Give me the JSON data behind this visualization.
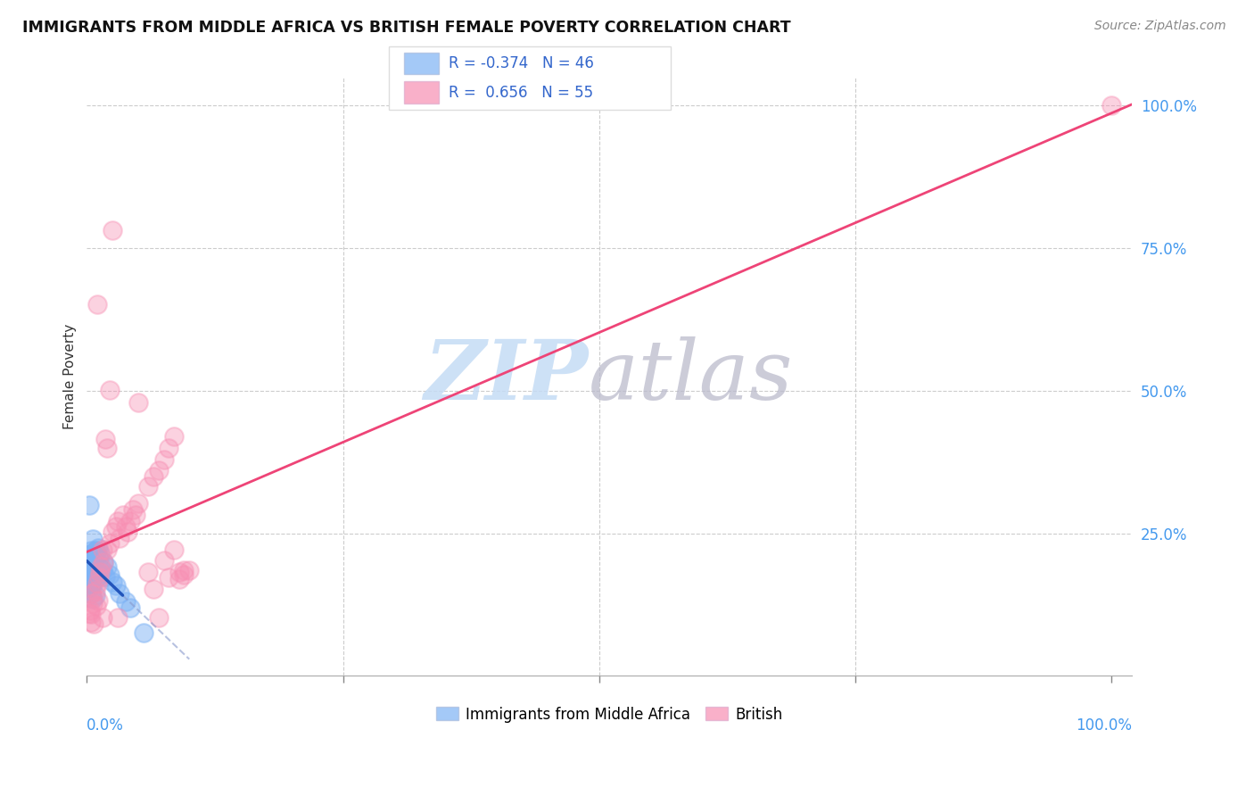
{
  "title": "IMMIGRANTS FROM MIDDLE AFRICA VS BRITISH FEMALE POVERTY CORRELATION CHART",
  "source": "Source: ZipAtlas.com",
  "ylabel": "Female Poverty",
  "blue_color": "#7EB3F5",
  "pink_color": "#F78FB3",
  "blue_line_color": "#2255BB",
  "pink_line_color": "#EE4477",
  "blue_R": -0.374,
  "pink_R": 0.656,
  "blue_N": 46,
  "pink_N": 55,
  "blue_points": [
    [
      0.003,
      0.195
    ],
    [
      0.005,
      0.205
    ],
    [
      0.007,
      0.2
    ],
    [
      0.008,
      0.21
    ],
    [
      0.002,
      0.185
    ],
    [
      0.003,
      0.175
    ],
    [
      0.004,
      0.17
    ],
    [
      0.005,
      0.165
    ],
    [
      0.006,
      0.16
    ],
    [
      0.004,
      0.22
    ],
    [
      0.002,
      0.19
    ],
    [
      0.001,
      0.2
    ],
    [
      0.003,
      0.165
    ],
    [
      0.004,
      0.18
    ],
    [
      0.006,
      0.215
    ],
    [
      0.007,
      0.185
    ],
    [
      0.009,
      0.18
    ],
    [
      0.01,
      0.175
    ],
    [
      0.001,
      0.195
    ],
    [
      0.002,
      0.168
    ],
    [
      0.012,
      0.205
    ],
    [
      0.011,
      0.225
    ],
    [
      0.008,
      0.22
    ],
    [
      0.006,
      0.24
    ],
    [
      0.015,
      0.185
    ],
    [
      0.018,
      0.175
    ],
    [
      0.003,
      0.155
    ],
    [
      0.004,
      0.145
    ],
    [
      0.006,
      0.135
    ],
    [
      0.005,
      0.162
    ],
    [
      0.009,
      0.22
    ],
    [
      0.013,
      0.215
    ],
    [
      0.016,
      0.2
    ],
    [
      0.02,
      0.192
    ],
    [
      0.022,
      0.178
    ],
    [
      0.025,
      0.165
    ],
    [
      0.028,
      0.158
    ],
    [
      0.002,
      0.3
    ],
    [
      0.032,
      0.145
    ],
    [
      0.038,
      0.13
    ],
    [
      0.001,
      0.212
    ],
    [
      0.003,
      0.192
    ],
    [
      0.005,
      0.182
    ],
    [
      0.008,
      0.142
    ],
    [
      0.042,
      0.12
    ],
    [
      0.055,
      0.075
    ]
  ],
  "pink_points": [
    [
      0.003,
      0.115
    ],
    [
      0.004,
      0.095
    ],
    [
      0.005,
      0.145
    ],
    [
      0.004,
      0.108
    ],
    [
      0.006,
      0.128
    ],
    [
      0.007,
      0.092
    ],
    [
      0.008,
      0.15
    ],
    [
      0.002,
      0.11
    ],
    [
      0.01,
      0.162
    ],
    [
      0.009,
      0.122
    ],
    [
      0.012,
      0.172
    ],
    [
      0.011,
      0.132
    ],
    [
      0.015,
      0.222
    ],
    [
      0.013,
      0.182
    ],
    [
      0.016,
      0.2
    ],
    [
      0.014,
      0.192
    ],
    [
      0.018,
      0.415
    ],
    [
      0.02,
      0.222
    ],
    [
      0.02,
      0.4
    ],
    [
      0.022,
      0.232
    ],
    [
      0.025,
      0.252
    ],
    [
      0.025,
      0.782
    ],
    [
      0.028,
      0.262
    ],
    [
      0.03,
      0.272
    ],
    [
      0.032,
      0.242
    ],
    [
      0.035,
      0.282
    ],
    [
      0.038,
      0.262
    ],
    [
      0.04,
      0.252
    ],
    [
      0.042,
      0.272
    ],
    [
      0.045,
      0.292
    ],
    [
      0.048,
      0.282
    ],
    [
      0.05,
      0.302
    ],
    [
      0.015,
      0.102
    ],
    [
      0.03,
      0.102
    ],
    [
      0.022,
      0.502
    ],
    [
      0.01,
      0.652
    ],
    [
      0.06,
      0.182
    ],
    [
      0.065,
      0.152
    ],
    [
      0.07,
      0.102
    ],
    [
      0.075,
      0.202
    ],
    [
      0.08,
      0.172
    ],
    [
      0.085,
      0.222
    ],
    [
      0.09,
      0.182
    ],
    [
      0.095,
      0.178
    ],
    [
      0.06,
      0.332
    ],
    [
      0.065,
      0.35
    ],
    [
      0.07,
      0.36
    ],
    [
      0.075,
      0.38
    ],
    [
      0.08,
      0.4
    ],
    [
      0.085,
      0.42
    ],
    [
      0.09,
      0.17
    ],
    [
      0.095,
      0.185
    ],
    [
      0.1,
      0.185
    ],
    [
      1.0,
      1.0
    ],
    [
      0.05,
      0.48
    ]
  ]
}
